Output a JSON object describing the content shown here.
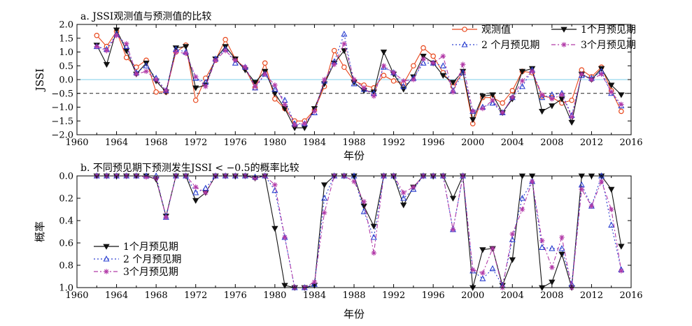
{
  "chart_data": [
    {
      "panel": "a",
      "type": "line",
      "title": "a. JSSI观测值与预测值的比较",
      "xlabel": "年份",
      "ylabel": "JSSI",
      "xlim": [
        1960,
        2016
      ],
      "ylim": [
        -2.0,
        2.0
      ],
      "xticks": [
        1960,
        1964,
        1968,
        1972,
        1976,
        1980,
        1984,
        1988,
        1992,
        1996,
        2000,
        2004,
        2008,
        2012,
        2016
      ],
      "yticks": [
        2.0,
        1.5,
        1.0,
        0.5,
        0.0,
        -0.5,
        -1.0,
        -1.5,
        -2.0
      ],
      "ytick_labels": [
        "2.0",
        "1.5",
        "1.0",
        "0.5",
        "0.0",
        "−0.5",
        "−1.0",
        "−1.5",
        "−2.0"
      ],
      "reference_lines": [
        {
          "y": 0.0,
          "style": "solid",
          "color": "#7ecde8"
        },
        {
          "y": -0.5,
          "style": "dashed",
          "color": "#222222"
        }
      ],
      "legend_placement": "top-right",
      "x": [
        1962,
        1963,
        1964,
        1965,
        1966,
        1967,
        1968,
        1969,
        1970,
        1971,
        1972,
        1973,
        1974,
        1975,
        1976,
        1977,
        1978,
        1979,
        1980,
        1981,
        1982,
        1983,
        1984,
        1985,
        1986,
        1987,
        1988,
        1989,
        1990,
        1991,
        1992,
        1993,
        1994,
        1995,
        1996,
        1997,
        1998,
        1999,
        2000,
        2001,
        2002,
        2003,
        2004,
        2005,
        2006,
        2007,
        2008,
        2009,
        2010,
        2011,
        2012,
        2013,
        2014,
        2015
      ],
      "series": [
        {
          "name": "观测值",
          "color": "#e8471c",
          "marker": "circle",
          "dash": "",
          "values": [
            1.6,
            1.2,
            1.75,
            0.8,
            0.45,
            0.7,
            -0.45,
            -0.45,
            1.0,
            1.25,
            -0.75,
            0.05,
            0.7,
            1.45,
            0.75,
            0.4,
            -0.3,
            0.6,
            -0.7,
            -1.05,
            -1.5,
            -1.5,
            -1.1,
            -0.25,
            1.05,
            0.45,
            -0.05,
            -0.2,
            -0.3,
            0.15,
            -0.05,
            -0.15,
            0.5,
            1.15,
            0.85,
            0.25,
            -0.25,
            0.25,
            -1.6,
            -0.65,
            -0.65,
            -0.85,
            -0.4,
            0.3,
            0.25,
            -0.6,
            -0.65,
            -0.85,
            -0.75,
            0.35,
            0.1,
            0.45,
            -0.4,
            -1.15
          ]
        },
        {
          "name": "1个月预见期",
          "color": "#111111",
          "marker": "down-triangle",
          "dash": "",
          "values": [
            1.25,
            0.55,
            1.8,
            1.05,
            0.2,
            0.6,
            -0.05,
            -0.45,
            1.15,
            1.2,
            -0.3,
            -0.2,
            0.75,
            1.2,
            0.75,
            0.35,
            -0.1,
            0.3,
            -0.5,
            -1.05,
            -1.75,
            -1.75,
            -1.05,
            -0.15,
            0.6,
            1.05,
            -0.1,
            -0.4,
            -0.45,
            1.0,
            0.2,
            -0.35,
            0.1,
            0.85,
            0.6,
            0.15,
            -0.1,
            0.3,
            -1.45,
            -0.6,
            -0.55,
            -1.2,
            -0.7,
            0.3,
            0.4,
            -1.15,
            -0.95,
            -0.7,
            -1.55,
            0.2,
            0.0,
            0.4,
            -0.2,
            -0.55
          ]
        },
        {
          "name": "2 个月预见期",
          "color": "#2a3fd0",
          "marker": "up-triangle",
          "dash": "2,3",
          "values": [
            1.2,
            1.1,
            1.65,
            1.2,
            0.25,
            0.5,
            0.05,
            -0.4,
            1.1,
            1.0,
            0.05,
            -0.1,
            0.75,
            1.1,
            0.6,
            0.45,
            -0.3,
            0.2,
            -0.35,
            -0.75,
            -1.6,
            -1.6,
            -1.2,
            -0.05,
            0.65,
            1.65,
            -0.15,
            -0.35,
            -0.5,
            0.45,
            0.25,
            -0.25,
            0.05,
            0.6,
            0.6,
            0.5,
            -0.4,
            0.25,
            -1.15,
            -1.0,
            -0.85,
            -1.2,
            -0.65,
            -0.25,
            0.35,
            -0.65,
            -0.55,
            -0.5,
            -1.3,
            0.15,
            0.05,
            0.3,
            -0.5,
            -0.95
          ]
        },
        {
          "name": "3个月预见期",
          "color": "#b23aa8",
          "marker": "star",
          "dash": "6,3,2,3",
          "values": [
            1.2,
            1.05,
            1.6,
            1.3,
            0.2,
            0.3,
            0.0,
            -0.4,
            1.0,
            0.95,
            0.1,
            -0.25,
            0.7,
            1.05,
            0.7,
            0.45,
            -0.25,
            0.2,
            -0.2,
            -0.9,
            -1.65,
            -1.6,
            -1.15,
            0.0,
            0.55,
            1.3,
            0.0,
            -0.3,
            -0.6,
            0.5,
            0.25,
            -0.05,
            0.0,
            0.75,
            0.6,
            0.85,
            -0.45,
            0.55,
            -1.15,
            -1.05,
            -0.75,
            -1.2,
            -0.65,
            -0.05,
            0.3,
            -0.55,
            -0.7,
            -0.55,
            -1.35,
            0.2,
            0.0,
            0.2,
            -0.45,
            -0.9
          ]
        }
      ]
    },
    {
      "panel": "b",
      "type": "line",
      "title": "b. 不同预见期下预测发生JSSI < −0.5的概率比较",
      "xlabel": "年份",
      "ylabel": "概率",
      "xlim": [
        1960,
        2016
      ],
      "ylim": [
        0.0,
        1.0
      ],
      "y_inverted": true,
      "xticks": [
        1960,
        1964,
        1968,
        1972,
        1976,
        1980,
        1984,
        1988,
        1992,
        1996,
        2000,
        2004,
        2008,
        2012,
        2016
      ],
      "yticks": [
        0.0,
        0.2,
        0.4,
        0.6,
        0.8,
        1.0
      ],
      "ytick_labels": [
        "0.0",
        "0.2",
        "0.4",
        "0.6",
        "0.8",
        "1.0"
      ],
      "legend_placement": "bottom-left",
      "x": [
        1962,
        1963,
        1964,
        1965,
        1966,
        1967,
        1968,
        1969,
        1970,
        1971,
        1972,
        1973,
        1974,
        1975,
        1976,
        1977,
        1978,
        1979,
        1980,
        1981,
        1982,
        1983,
        1984,
        1985,
        1986,
        1987,
        1988,
        1989,
        1990,
        1991,
        1992,
        1993,
        1994,
        1995,
        1996,
        1997,
        1998,
        1999,
        2000,
        2001,
        2002,
        2003,
        2004,
        2005,
        2006,
        2007,
        2008,
        2009,
        2010,
        2011,
        2012,
        2013,
        2014,
        2015
      ],
      "series": [
        {
          "name": "1个月预见期",
          "color": "#111111",
          "marker": "down-triangle",
          "dash": "",
          "values": [
            0.0,
            0.0,
            0.0,
            0.0,
            0.0,
            0.0,
            0.03,
            0.36,
            0.0,
            0.0,
            0.22,
            0.15,
            0.0,
            0.0,
            0.0,
            0.0,
            0.02,
            0.0,
            0.47,
            0.98,
            1.0,
            1.0,
            0.98,
            0.08,
            0.0,
            0.0,
            0.0,
            0.27,
            0.45,
            0.0,
            0.0,
            0.26,
            0.1,
            0.0,
            0.0,
            0.0,
            0.2,
            0.0,
            1.0,
            0.66,
            0.65,
            0.98,
            0.75,
            0.0,
            0.0,
            1.0,
            0.95,
            0.7,
            1.0,
            0.0,
            0.0,
            0.0,
            0.12,
            0.63
          ]
        },
        {
          "name": "2 个月预见期",
          "color": "#2a3fd0",
          "marker": "up-triangle",
          "dash": "2,3",
          "values": [
            0.0,
            0.0,
            0.0,
            0.0,
            0.0,
            0.0,
            0.0,
            0.37,
            0.0,
            0.0,
            0.15,
            0.11,
            0.0,
            0.0,
            0.0,
            0.0,
            0.01,
            0.0,
            0.13,
            0.55,
            1.0,
            1.0,
            0.97,
            0.2,
            0.0,
            0.0,
            0.0,
            0.32,
            0.55,
            0.0,
            0.0,
            0.2,
            0.12,
            0.0,
            0.0,
            0.0,
            0.48,
            0.0,
            0.85,
            0.92,
            0.83,
            0.98,
            0.57,
            0.2,
            0.05,
            0.64,
            0.65,
            0.65,
            0.97,
            0.08,
            0.27,
            0.0,
            0.44,
            0.84
          ]
        },
        {
          "name": "3个月预见期",
          "color": "#b23aa8",
          "marker": "star",
          "dash": "6,3,2,3",
          "values": [
            0.0,
            0.0,
            0.0,
            0.0,
            0.0,
            0.01,
            0.02,
            0.37,
            0.0,
            0.0,
            0.1,
            0.15,
            0.0,
            0.0,
            0.0,
            0.0,
            0.02,
            0.0,
            0.08,
            0.55,
            1.0,
            1.0,
            0.95,
            0.33,
            0.0,
            0.0,
            0.05,
            0.23,
            0.69,
            0.0,
            0.0,
            0.15,
            0.1,
            0.0,
            0.0,
            0.0,
            0.48,
            0.0,
            0.84,
            0.87,
            0.65,
            1.0,
            0.52,
            0.3,
            0.05,
            0.58,
            0.82,
            0.55,
            1.0,
            0.12,
            0.27,
            0.05,
            0.3,
            0.85
          ]
        }
      ]
    }
  ]
}
